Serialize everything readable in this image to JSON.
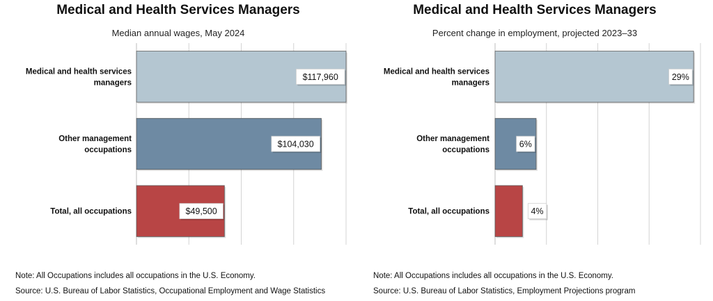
{
  "chart_data": [
    {
      "type": "bar",
      "orientation": "horizontal",
      "title": "Medical and Health Services Managers",
      "subtitle": "Median annual wages, May 2024",
      "categories": [
        [
          "Medical and health services",
          "managers"
        ],
        [
          "Other management",
          "occupations"
        ],
        [
          "Total, all occupations"
        ]
      ],
      "values": [
        117960,
        104030,
        49500
      ],
      "data_labels": [
        "$117,960",
        "$104,030",
        "$49,500"
      ],
      "colors": [
        "#b4c6d1",
        "#6e8aa3",
        "#b84545"
      ],
      "xlim": [
        0,
        117960
      ],
      "grid": true,
      "notes": [
        "Note: All Occupations includes all occupations in the U.S. Economy.",
        "Source: U.S. Bureau of Labor Statistics, Occupational Employment and Wage Statistics"
      ]
    },
    {
      "type": "bar",
      "orientation": "horizontal",
      "title": "Medical and Health Services Managers",
      "subtitle": "Percent change in employment, projected 2023–33",
      "categories": [
        [
          "Medical and health services",
          "managers"
        ],
        [
          "Other management",
          "occupations"
        ],
        [
          "Total, all occupations"
        ]
      ],
      "values": [
        29,
        6,
        4
      ],
      "data_labels": [
        "29%",
        "6%",
        "4%"
      ],
      "colors": [
        "#b4c6d1",
        "#6e8aa3",
        "#b84545"
      ],
      "xlim": [
        0,
        30
      ],
      "grid": true,
      "notes": [
        "Note: All Occupations includes all occupations in the U.S. Economy.",
        "Source: U.S. Bureau of Labor Statistics, Employment Projections program"
      ]
    }
  ]
}
